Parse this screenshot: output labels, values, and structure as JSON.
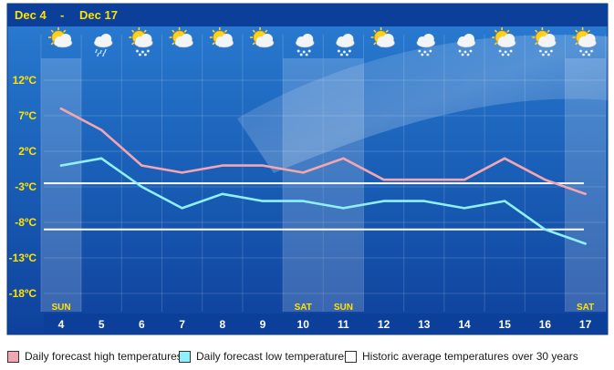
{
  "header": {
    "start": "Dec 4",
    "separator": "-",
    "end": "Dec 17"
  },
  "chart_data": {
    "type": "line",
    "x": [
      "4",
      "5",
      "6",
      "7",
      "8",
      "9",
      "10",
      "11",
      "12",
      "13",
      "14",
      "15",
      "16",
      "17"
    ],
    "weekday_labels": [
      "SUN",
      "",
      "",
      "",
      "",
      "",
      "SAT",
      "SUN",
      "",
      "",
      "",
      "",
      "",
      "SAT"
    ],
    "weekend_shaded": [
      true,
      false,
      false,
      false,
      false,
      false,
      true,
      true,
      false,
      false,
      false,
      false,
      false,
      true
    ],
    "y_ticks": [
      "12ºC",
      "7ºC",
      "2ºC",
      "-3ºC",
      "-8ºC",
      "-13ºC",
      "-18ºC"
    ],
    "y_tick_values": [
      12,
      7,
      2,
      -3,
      -8,
      -13,
      -18
    ],
    "ylim": [
      -22,
      15
    ],
    "series": [
      {
        "name": "Daily forecast high temperatures",
        "color": "#f4a6b0",
        "values": [
          8,
          5,
          0,
          -1,
          0,
          0,
          -1,
          1,
          -2,
          -2,
          -2,
          1,
          -2,
          -4
        ]
      },
      {
        "name": "Daily forecast low temperatures",
        "color": "#8ff0fa",
        "values": [
          0,
          1,
          -3,
          -6,
          -4,
          -5,
          -5,
          -6,
          -5,
          -5,
          -6,
          -5,
          -9,
          -11
        ]
      }
    ],
    "reference_lines": [
      {
        "name": "Historic average temperatures over 30 years",
        "values": [
          -2.5,
          -9
        ]
      }
    ],
    "icons": [
      "sun-cloud-icon",
      "cloud-rain-icon",
      "sun-snow-icon",
      "sun-cloud-icon",
      "sun-cloud-icon",
      "sun-cloud-icon",
      "cloud-snow-icon",
      "cloud-snow-icon",
      "sun-cloud-icon",
      "cloud-snow-icon",
      "cloud-snow-icon",
      "sun-snow-icon",
      "sun-snow-icon",
      "sun-snow-icon"
    ]
  },
  "legend": {
    "high": "Daily forecast high temperatures",
    "low": "Daily forecast low temperatures",
    "historic": "Historic average temperatures over 30 years"
  },
  "colors": {
    "bg_top": "#1f6fc4",
    "bg_bottom": "#0d3f9a",
    "header_text": "#ffe200",
    "weekday_text": "#ffe200",
    "high_line": "#f4a6b0",
    "low_line": "#8ff0fa",
    "historic_line": "#ffffff"
  }
}
